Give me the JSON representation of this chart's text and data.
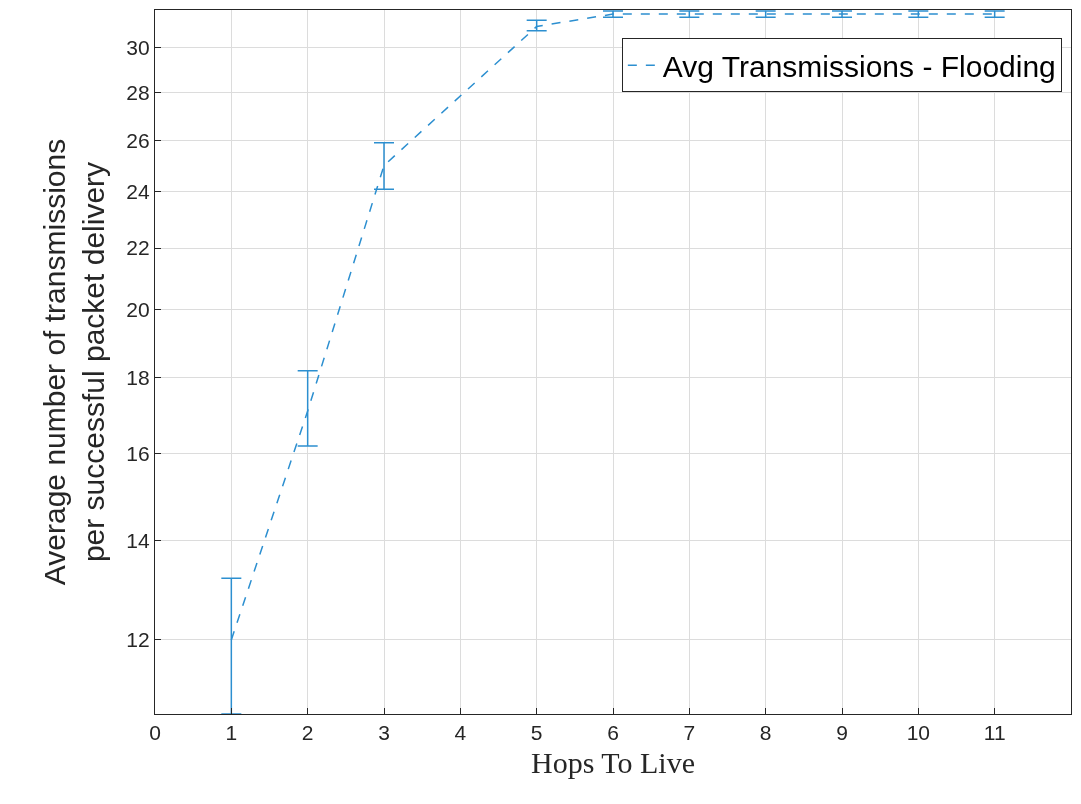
{
  "chart_data": {
    "type": "line",
    "xlabel": "Hops To Live",
    "ylabel": "Average number of transmissions\nper successful packet delivery",
    "x": [
      1,
      2,
      3,
      4,
      5,
      6,
      7,
      8,
      9,
      10,
      11
    ],
    "series": [
      {
        "name": "Avg Transmissions - Flooding",
        "color": "#2c8fd0",
        "values": [
          12.0,
          17.1,
          25.0,
          null,
          31.0,
          31.6,
          31.6,
          31.6,
          31.6,
          31.6,
          31.6
        ],
        "errors": [
          [
            10.7,
            13.2
          ],
          [
            16.2,
            18.2
          ],
          [
            24.1,
            25.9
          ],
          null,
          [
            30.8,
            31.3
          ],
          [
            31.45,
            31.75
          ],
          [
            31.45,
            31.75
          ],
          [
            31.45,
            31.75
          ],
          [
            31.45,
            31.75
          ],
          [
            31.45,
            31.75
          ],
          [
            31.45,
            31.75
          ]
        ]
      }
    ],
    "xlim": [
      0,
      12
    ],
    "xticks": [
      0,
      1,
      2,
      3,
      4,
      5,
      6,
      7,
      8,
      9,
      10,
      11
    ],
    "ylim": [
      10.7,
      31.8
    ],
    "yticks": [
      12,
      14,
      16,
      18,
      20,
      22,
      24,
      26,
      28,
      30
    ],
    "log": "y",
    "grid": true,
    "legend": "top right",
    "marker": "none",
    "line_style": "dashed"
  }
}
